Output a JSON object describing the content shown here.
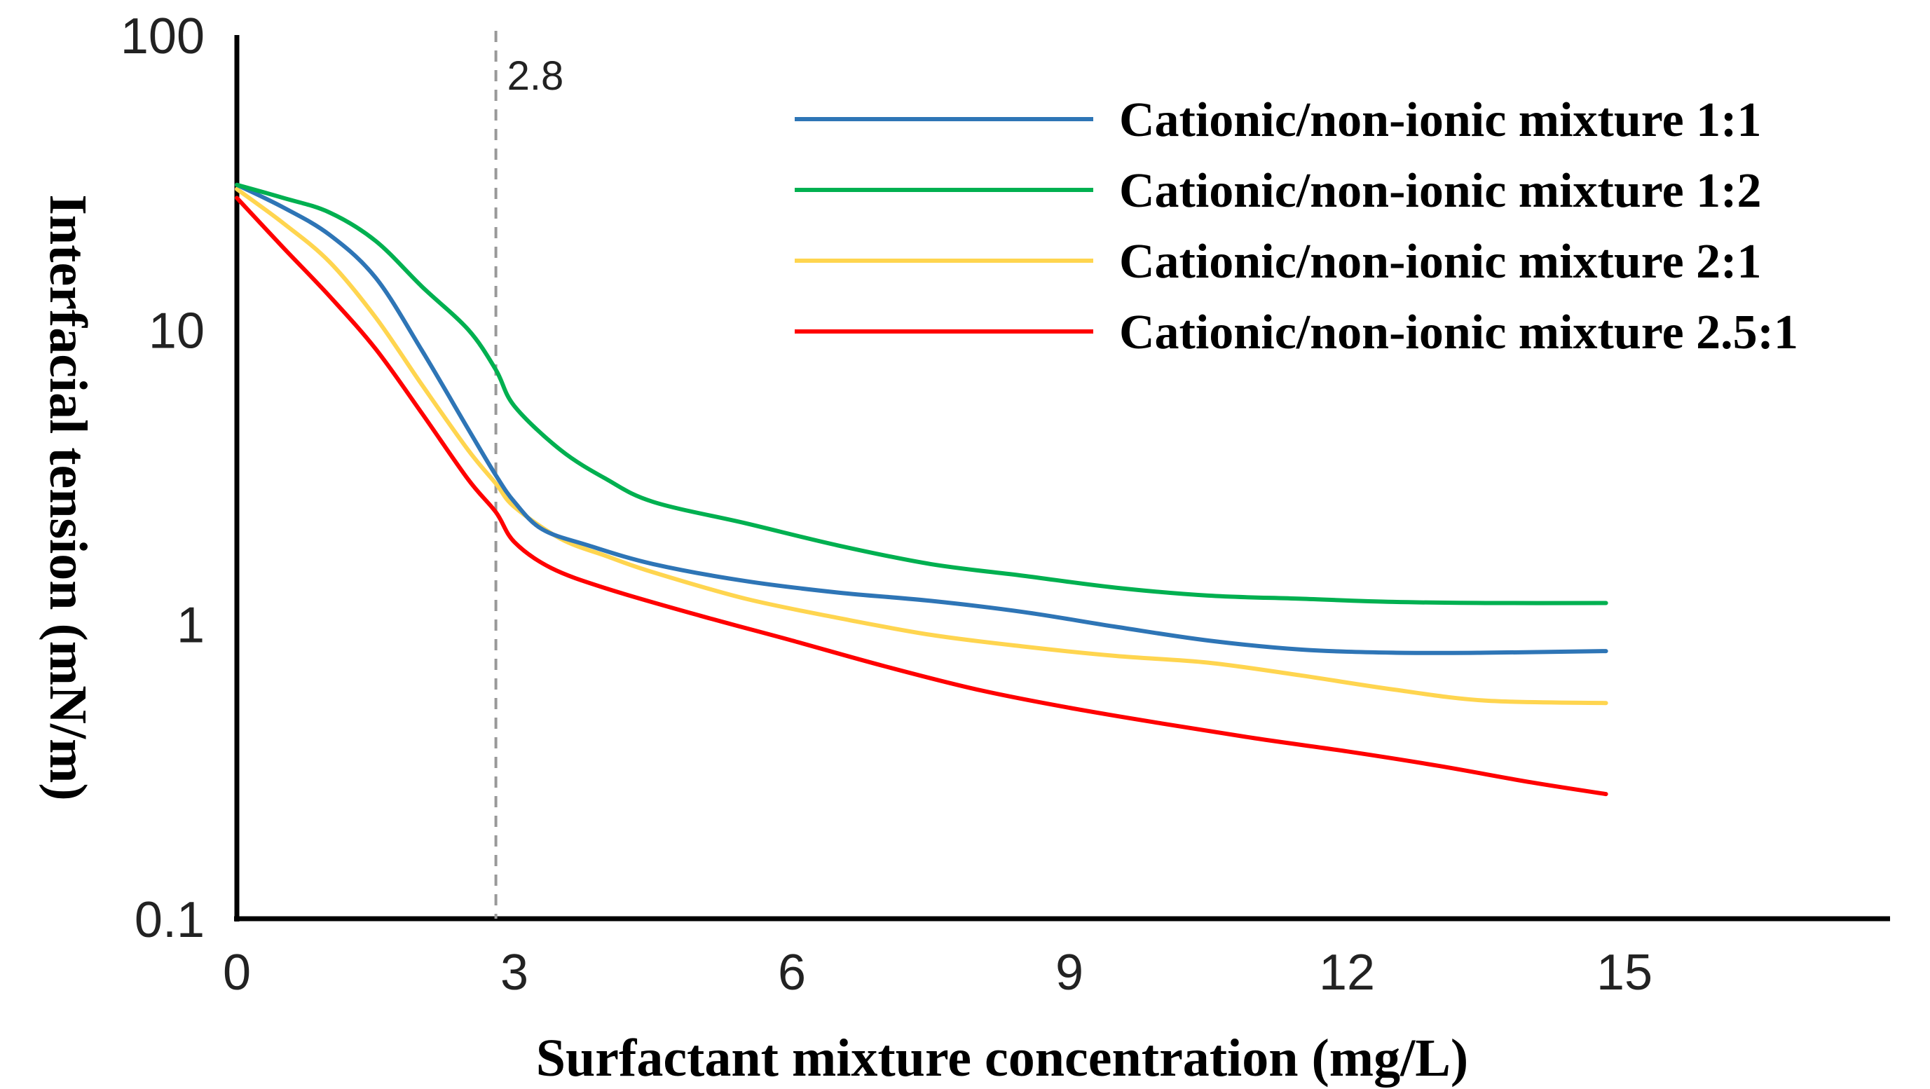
{
  "chart_data": {
    "type": "line",
    "xlabel": "Surfactant mixture concentration (mg/L)",
    "ylabel": "Interfacial tension (mN/m)",
    "xlim": [
      0,
      17.8
    ],
    "ylim": [
      0.1,
      100
    ],
    "yscale": "log",
    "x_ticks": [
      0,
      3,
      6,
      9,
      12,
      15
    ],
    "x_tick_labels": [
      "0",
      "3",
      "6",
      "9",
      "12",
      "15"
    ],
    "y_ticks": [
      0.1,
      1,
      10,
      100
    ],
    "y_tick_labels": [
      "0.1",
      "1",
      "10",
      "100"
    ],
    "grid": false,
    "legend_position": "top-right",
    "annotations": [
      {
        "type": "vline",
        "x": 2.8,
        "label": "2.8",
        "style": "dashed",
        "color": "#999999"
      }
    ],
    "series": [
      {
        "name": "Cationic/non-ionic mixture 1:1",
        "color": "#2E75B6",
        "x": [
          0,
          0.5,
          1,
          1.5,
          2,
          2.5,
          2.8,
          3,
          3.3,
          3.8,
          4.5,
          5.5,
          6.5,
          7.5,
          8.5,
          9.5,
          10.5,
          11.5,
          12.5,
          13.5,
          14.8
        ],
        "y": [
          31,
          26,
          21,
          15,
          8.5,
          4.6,
          3.2,
          2.6,
          2.1,
          1.85,
          1.6,
          1.4,
          1.28,
          1.2,
          1.1,
          0.98,
          0.88,
          0.82,
          0.8,
          0.8,
          0.81
        ]
      },
      {
        "name": "Cationic/non-ionic mixture 1:2",
        "color": "#00B050",
        "x": [
          0,
          0.5,
          1,
          1.5,
          2,
          2.5,
          2.8,
          3,
          3.5,
          4,
          4.5,
          5.5,
          6.5,
          7.5,
          8.5,
          9.5,
          10.5,
          11.5,
          12.5,
          13.5,
          14.8
        ],
        "y": [
          31,
          28,
          25,
          20,
          14,
          10,
          7.3,
          5.5,
          3.9,
          3.1,
          2.6,
          2.2,
          1.85,
          1.6,
          1.46,
          1.33,
          1.25,
          1.22,
          1.19,
          1.18,
          1.18
        ]
      },
      {
        "name": "Cationic/non-ionic mixture 2:1",
        "color": "#FFD54F",
        "x": [
          0,
          0.5,
          1,
          1.5,
          2,
          2.5,
          2.8,
          3,
          3.5,
          4,
          4.5,
          5.5,
          6.5,
          7.5,
          8.5,
          9.5,
          10.5,
          11.5,
          12.5,
          13.5,
          14.8
        ],
        "y": [
          30,
          23,
          17,
          11,
          6.5,
          3.9,
          3.0,
          2.5,
          1.95,
          1.7,
          1.5,
          1.22,
          1.05,
          0.92,
          0.84,
          0.78,
          0.74,
          0.67,
          0.6,
          0.55,
          0.54
        ]
      },
      {
        "name": "Cationic/non-ionic mixture 2.5:1",
        "color": "#FF0000",
        "x": [
          0,
          0.5,
          1,
          1.5,
          2,
          2.5,
          2.8,
          3,
          3.4,
          4,
          5,
          6,
          7,
          8,
          9,
          10,
          11,
          12,
          13,
          14,
          14.8
        ],
        "y": [
          28,
          19,
          13,
          8.6,
          5.2,
          3.1,
          2.4,
          1.9,
          1.55,
          1.32,
          1.07,
          0.88,
          0.72,
          0.6,
          0.52,
          0.46,
          0.41,
          0.37,
          0.33,
          0.29,
          0.265
        ]
      }
    ]
  }
}
